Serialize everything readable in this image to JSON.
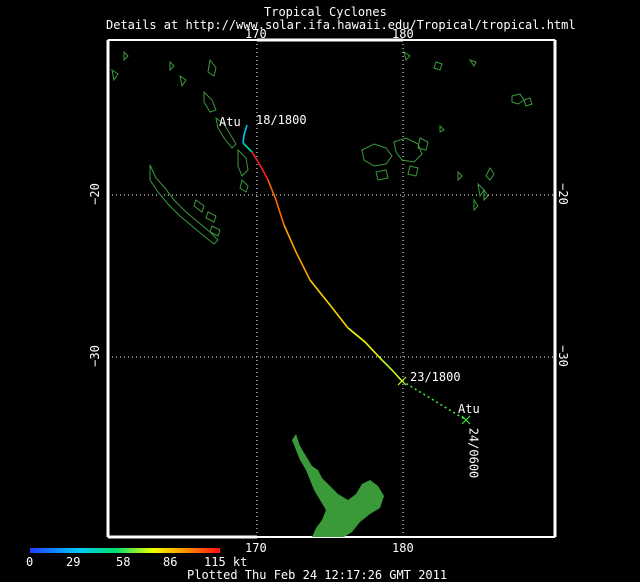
{
  "header": {
    "title": "Tropical Cyclones",
    "details": "Details at http://www.solar.ifa.hawaii.edu/Tropical/tropical.html"
  },
  "axes": {
    "lon_top": [
      "170",
      "180"
    ],
    "lon_bottom": [
      "170",
      "180"
    ],
    "lat_left": [
      "−20",
      "−30"
    ],
    "lat_right": [
      "−20",
      "−30"
    ]
  },
  "storm": {
    "name_start": "Atu",
    "label_start": "18/1800",
    "label_mid": "23/1800",
    "name_end": "Atu",
    "label_end": "24/0600",
    "track_colors": [
      "#00c0ff",
      "#00d8a0",
      "#ff2020",
      "#ff6a00",
      "#ffa000",
      "#ffd000",
      "#f0ff00",
      "#c0ff20",
      "#40e040"
    ]
  },
  "scale": {
    "ticks": [
      "0",
      "29",
      "58",
      "86",
      "115 kt"
    ],
    "colors": [
      "#1f3cff",
      "#00c8ff",
      "#00e070",
      "#f0ff00",
      "#ff9000",
      "#ff1010"
    ]
  },
  "footer": {
    "plotted": "Plotted Thu Feb 24 12:17:26 GMT 2011"
  },
  "land_color": "#3a9a3a"
}
